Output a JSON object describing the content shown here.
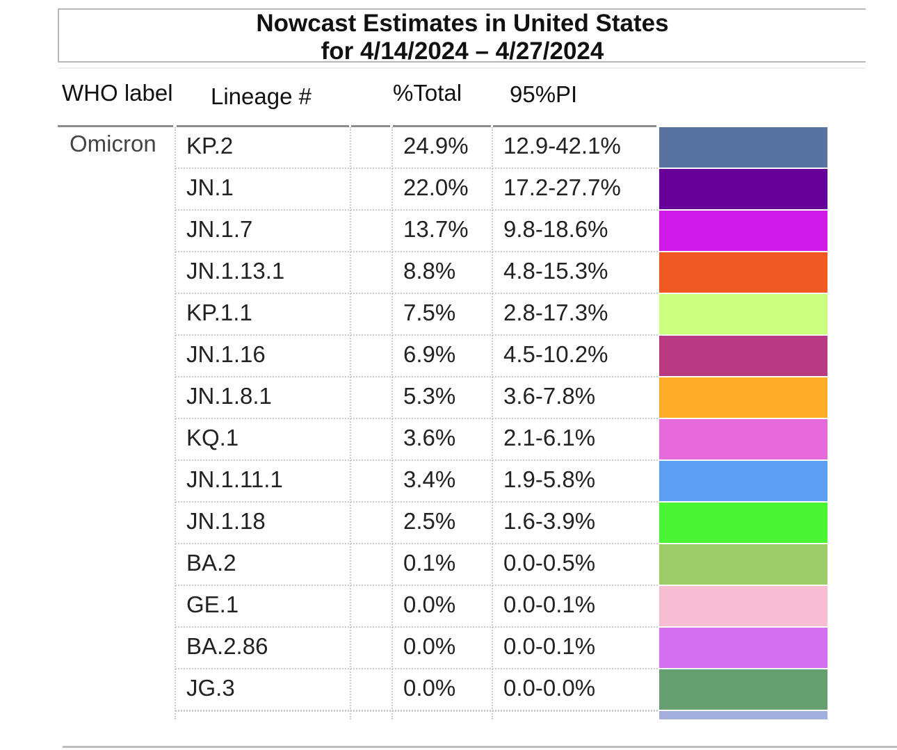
{
  "title": {
    "line1": "Nowcast Estimates in United States",
    "line2": "for 4/14/2024 – 4/27/2024"
  },
  "headers": {
    "who": "WHO label",
    "lineage": "Lineage #",
    "total": "%Total",
    "pi": "95%PI"
  },
  "who_label": "Omicron",
  "chart_data": {
    "type": "table",
    "title": "Nowcast Estimates in United States for 4/14/2024 – 4/27/2024",
    "columns": [
      "WHO label",
      "Lineage #",
      "%Total",
      "95%PI"
    ],
    "rows": [
      {
        "lineage": "KP.2",
        "total": "24.9%",
        "pi": "12.9-42.1%",
        "color": "#5873a0"
      },
      {
        "lineage": "JN.1",
        "total": "22.0%",
        "pi": "17.2-27.7%",
        "color": "#660099"
      },
      {
        "lineage": "JN.1.7",
        "total": "13.7%",
        "pi": "9.8-18.6%",
        "color": "#d01ae8"
      },
      {
        "lineage": "JN.1.13.1",
        "total": "8.8%",
        "pi": "4.8-15.3%",
        "color": "#f05a22"
      },
      {
        "lineage": "KP.1.1",
        "total": "7.5%",
        "pi": "2.8-17.3%",
        "color": "#ccff80"
      },
      {
        "lineage": "JN.1.16",
        "total": "6.9%",
        "pi": "4.5-10.2%",
        "color": "#b83a83"
      },
      {
        "lineage": "JN.1.8.1",
        "total": "5.3%",
        "pi": "3.6-7.8%",
        "color": "#ffad29"
      },
      {
        "lineage": "KQ.1",
        "total": "3.6%",
        "pi": "2.1-6.1%",
        "color": "#e56bdc"
      },
      {
        "lineage": "JN.1.11.1",
        "total": "3.4%",
        "pi": "1.9-5.8%",
        "color": "#5e9ef0"
      },
      {
        "lineage": "JN.1.18",
        "total": "2.5%",
        "pi": "1.6-3.9%",
        "color": "#4cf533"
      },
      {
        "lineage": "BA.2",
        "total": "0.1%",
        "pi": "0.0-0.5%",
        "color": "#9ccc66"
      },
      {
        "lineage": "GE.1",
        "total": "0.0%",
        "pi": "0.0-0.1%",
        "color": "#f8bcd3"
      },
      {
        "lineage": "BA.2.86",
        "total": "0.0%",
        "pi": "0.0-0.1%",
        "color": "#d470f0"
      },
      {
        "lineage": "JG.3",
        "total": "0.0%",
        "pi": "0.0-0.0%",
        "color": "#66a070"
      }
    ],
    "partial_row_color": "#a3aedd"
  }
}
